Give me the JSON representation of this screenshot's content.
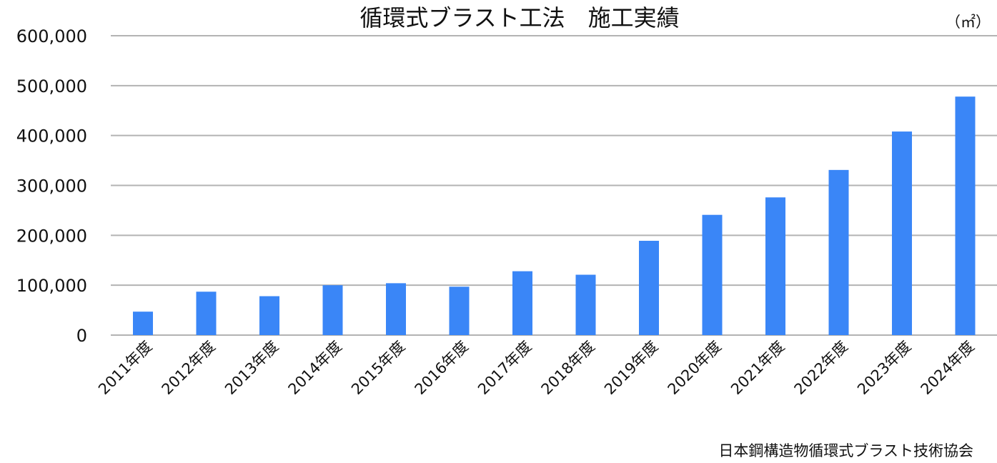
{
  "chart_data": {
    "type": "bar",
    "title": "循環式ブラスト工法　施工実績",
    "unit_label": "（㎡）",
    "source": "日本鋼構造物循環式ブラスト技術協会",
    "categories": [
      "2011年度",
      "2012年度",
      "2013年度",
      "2014年度",
      "2015年度",
      "2016年度",
      "2017年度",
      "2018年度",
      "2019年度",
      "2020年度",
      "2021年度",
      "2022年度",
      "2023年度",
      "2024年度"
    ],
    "values": [
      47000,
      87000,
      78000,
      100000,
      104000,
      97000,
      128000,
      121000,
      189000,
      241000,
      276000,
      331000,
      408000,
      478000
    ],
    "ylim": [
      0,
      600000
    ],
    "yticks": [
      0,
      100000,
      200000,
      300000,
      400000,
      500000,
      600000
    ],
    "ytick_labels": [
      "0",
      "100,000",
      "200,000",
      "300,000",
      "400,000",
      "500,000",
      "600,000"
    ],
    "grid": true,
    "legend": "none",
    "bar_color": "#3a86f7"
  }
}
